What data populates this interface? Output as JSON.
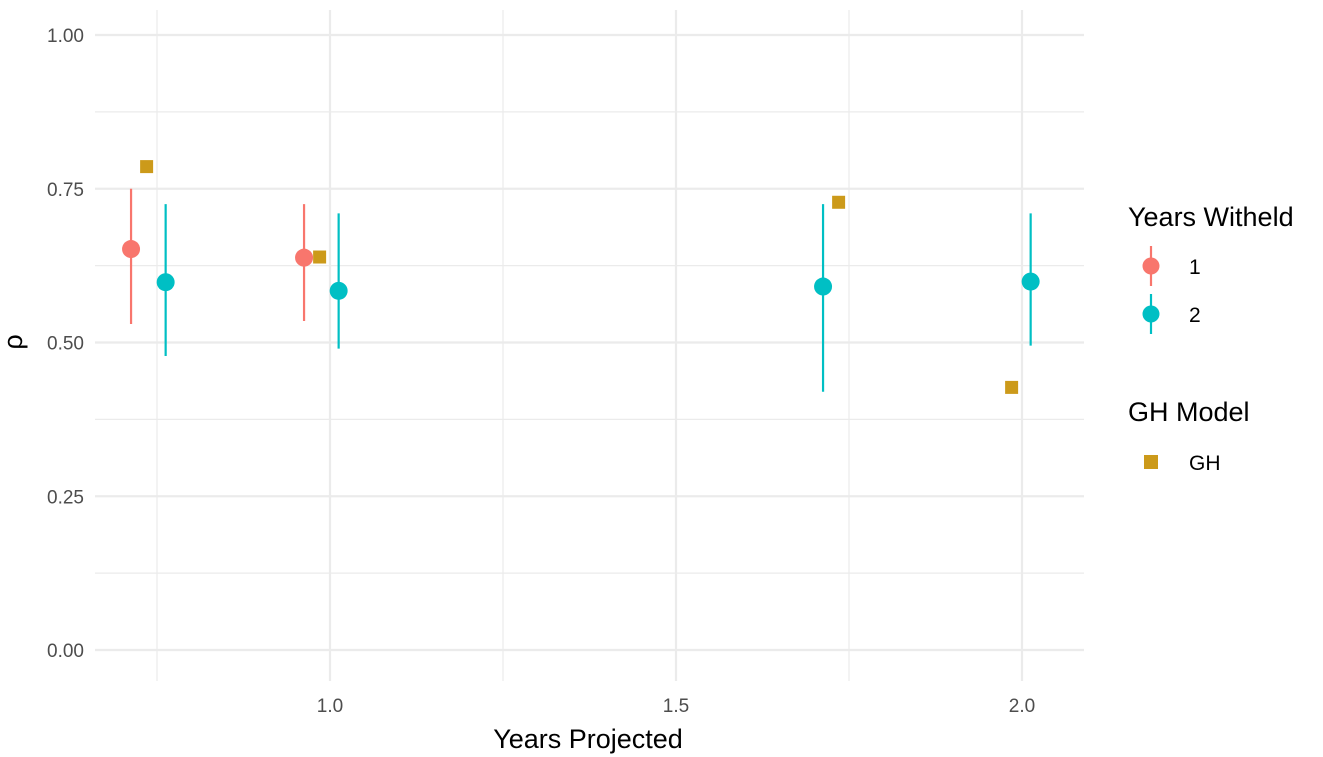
{
  "chart_data": {
    "type": "scatter",
    "xlabel": "Years Projected",
    "ylabel": "ρ",
    "xlim": [
      0.65,
      2.07
    ],
    "ylim": [
      -0.05,
      1.03
    ],
    "x_ticks": [
      1.0,
      1.5,
      2.0
    ],
    "x_tick_labels": [
      "1.0",
      "1.5",
      "2.0"
    ],
    "x_minor_ticks": [
      0.75,
      1.25,
      1.75
    ],
    "y_ticks": [
      0.0,
      0.25,
      0.5,
      0.75,
      1.0
    ],
    "y_tick_labels": [
      "0.00",
      "0.25",
      "0.50",
      "0.75",
      "1.00"
    ],
    "y_minor_ticks": [
      0.125,
      0.375,
      0.625,
      0.875
    ],
    "grid": true,
    "colors": {
      "withheld_1": "#F8766D",
      "withheld_2": "#00BFC4",
      "gh": "#CC9A1A",
      "grid": "#EBEBEB"
    },
    "series": [
      {
        "name": "1",
        "group": "Years Witheld",
        "marker": "circle",
        "color": "#F8766D",
        "points": [
          {
            "x": 0.7125,
            "y": 0.652,
            "ymin": 0.53,
            "ymax": 0.75
          },
          {
            "x": 0.9625,
            "y": 0.638,
            "ymin": 0.535,
            "ymax": 0.725
          }
        ]
      },
      {
        "name": "2",
        "group": "Years Witheld",
        "marker": "circle",
        "color": "#00BFC4",
        "points": [
          {
            "x": 0.7625,
            "y": 0.598,
            "ymin": 0.478,
            "ymax": 0.725
          },
          {
            "x": 1.0125,
            "y": 0.584,
            "ymin": 0.49,
            "ymax": 0.71
          },
          {
            "x": 1.7125,
            "y": 0.591,
            "ymin": 0.42,
            "ymax": 0.725
          },
          {
            "x": 2.0125,
            "y": 0.599,
            "ymin": 0.495,
            "ymax": 0.71
          }
        ]
      },
      {
        "name": "GH",
        "group": "GH Model",
        "marker": "square",
        "color": "#CC9A1A",
        "points": [
          {
            "x": 0.735,
            "y": 0.786
          },
          {
            "x": 0.985,
            "y": 0.639
          },
          {
            "x": 1.735,
            "y": 0.728
          },
          {
            "x": 1.985,
            "y": 0.427
          }
        ]
      }
    ],
    "legend": {
      "placement": "right",
      "groups": [
        {
          "title": "Years Witheld",
          "items": [
            {
              "label": "1",
              "color": "#F8766D",
              "marker": "circle-errorbar"
            },
            {
              "label": "2",
              "color": "#00BFC4",
              "marker": "circle-errorbar"
            }
          ]
        },
        {
          "title": "GH Model",
          "items": [
            {
              "label": "GH",
              "color": "#CC9A1A",
              "marker": "square"
            }
          ]
        }
      ]
    }
  }
}
